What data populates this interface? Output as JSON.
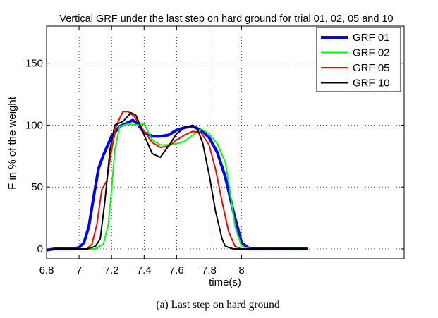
{
  "chart_data": {
    "type": "line",
    "title": "Vertical GRF under the last step on hard ground for trial 01, 02, 05 and 10",
    "xlabel": "time(s)",
    "ylabel": "F in % of the weight",
    "xlim": [
      6.8,
      9.0
    ],
    "ylim": [
      -8,
      180
    ],
    "xticks": [
      6.8,
      7.0,
      7.2,
      7.4,
      7.6,
      7.8,
      8.0
    ],
    "xtick_labels": [
      "6.8",
      "7",
      "7.2",
      "7.4",
      "7.6",
      "7.8",
      "8"
    ],
    "yticks": [
      0,
      50,
      100,
      150
    ],
    "ytick_labels": [
      "0",
      "50",
      "100",
      "150"
    ],
    "grid": true,
    "legend_position": "top-right",
    "caption": "(a) Last step on hard ground",
    "series": [
      {
        "name": "GRF 01",
        "color": "#0000ff",
        "width": 4,
        "x": [
          6.8,
          6.85,
          6.9,
          6.95,
          7.0,
          7.03,
          7.06,
          7.09,
          7.12,
          7.15,
          7.2,
          7.25,
          7.3,
          7.33,
          7.36,
          7.4,
          7.45,
          7.5,
          7.55,
          7.6,
          7.65,
          7.7,
          7.75,
          7.8,
          7.85,
          7.9,
          7.95,
          8.0,
          8.05,
          8.1,
          8.15,
          8.2,
          8.25,
          8.3,
          8.35,
          8.4
        ],
        "values": [
          -1,
          0,
          0,
          0,
          1,
          5,
          18,
          42,
          65,
          76,
          91,
          99,
          102,
          104,
          101,
          94,
          91,
          91,
          92,
          96,
          98,
          99,
          96,
          90,
          78,
          58,
          30,
          5,
          0,
          0,
          0,
          0,
          0,
          0,
          0,
          0
        ]
      },
      {
        "name": "GRF 02",
        "color": "#00ff00",
        "width": 2,
        "x": [
          6.8,
          6.85,
          6.9,
          6.95,
          7.0,
          7.05,
          7.1,
          7.15,
          7.18,
          7.2,
          7.22,
          7.25,
          7.3,
          7.35,
          7.4,
          7.45,
          7.5,
          7.55,
          7.6,
          7.65,
          7.7,
          7.75,
          7.8,
          7.85,
          7.9,
          7.93,
          7.96,
          8.0,
          8.05,
          8.1,
          8.15,
          8.2,
          8.25,
          8.3,
          8.35,
          8.4
        ],
        "values": [
          -1,
          0,
          0,
          0,
          0,
          0,
          0,
          4,
          20,
          48,
          80,
          99,
          101,
          100,
          101,
          88,
          84,
          84,
          85,
          87,
          92,
          97,
          93,
          85,
          70,
          45,
          18,
          2,
          0,
          0,
          0,
          0,
          0,
          0,
          0,
          0
        ]
      },
      {
        "name": "GRF 05",
        "color": "#ff0000",
        "width": 2,
        "x": [
          6.8,
          6.85,
          6.9,
          6.95,
          7.0,
          7.05,
          7.08,
          7.11,
          7.14,
          7.17,
          7.2,
          7.23,
          7.27,
          7.3,
          7.34,
          7.4,
          7.45,
          7.5,
          7.55,
          7.6,
          7.65,
          7.7,
          7.75,
          7.8,
          7.84,
          7.88,
          7.92,
          7.96,
          8.0,
          8.05,
          8.1,
          8.15,
          8.2,
          8.25,
          8.3,
          8.35,
          8.4
        ],
        "values": [
          -1,
          0,
          0,
          0,
          0,
          0,
          4,
          20,
          48,
          55,
          80,
          100,
          111,
          111,
          107,
          95,
          86,
          82,
          83,
          88,
          92,
          95,
          94,
          84,
          64,
          38,
          14,
          2,
          0,
          0,
          0,
          0,
          0,
          0,
          0,
          0,
          0
        ]
      },
      {
        "name": "GRF 10",
        "color": "#000000",
        "width": 2,
        "x": [
          6.8,
          6.85,
          6.9,
          6.95,
          7.0,
          7.05,
          7.1,
          7.13,
          7.16,
          7.19,
          7.22,
          7.27,
          7.32,
          7.35,
          7.4,
          7.45,
          7.5,
          7.55,
          7.6,
          7.65,
          7.7,
          7.73,
          7.76,
          7.8,
          7.84,
          7.88,
          7.9,
          7.95,
          8.0,
          8.05,
          8.1,
          8.15,
          8.2,
          8.25,
          8.3,
          8.35,
          8.4
        ],
        "values": [
          -1,
          0,
          0,
          0,
          0,
          0,
          2,
          8,
          40,
          80,
          100,
          103,
          110,
          108,
          92,
          77,
          74,
          83,
          93,
          98,
          100,
          96,
          86,
          60,
          30,
          8,
          2,
          0,
          0,
          0,
          0,
          0,
          0,
          0,
          0,
          0,
          0
        ]
      }
    ]
  }
}
